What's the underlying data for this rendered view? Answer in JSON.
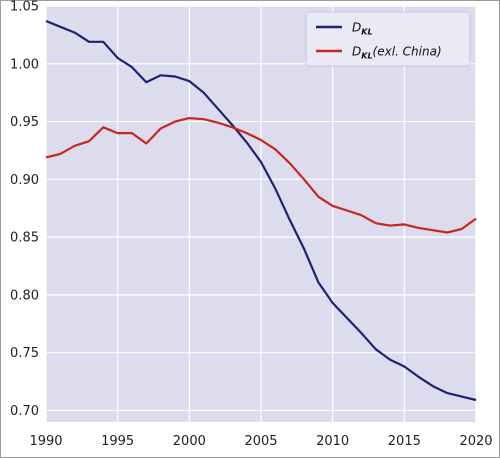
{
  "chart_data": {
    "type": "line",
    "x": [
      1990,
      1991,
      1992,
      1993,
      1994,
      1995,
      1996,
      1997,
      1998,
      1999,
      2000,
      2001,
      2002,
      2003,
      2004,
      2005,
      2006,
      2007,
      2008,
      2009,
      2010,
      2011,
      2012,
      2013,
      2014,
      2015,
      2016,
      2017,
      2018,
      2019,
      2020
    ],
    "series": [
      {
        "name": "D_KL",
        "legend_main": "D",
        "legend_sub": "KL",
        "legend_suffix": "",
        "color": "#1c2472",
        "values": [
          1.037,
          1.032,
          1.027,
          1.019,
          1.019,
          1.005,
          0.997,
          0.984,
          0.99,
          0.989,
          0.985,
          0.975,
          0.961,
          0.947,
          0.932,
          0.915,
          0.892,
          0.865,
          0.84,
          0.811,
          0.793,
          0.78,
          0.767,
          0.753,
          0.744,
          0.738,
          0.729,
          0.721,
          0.715,
          0.712,
          0.709
        ]
      },
      {
        "name": "D_KL(exl. China)",
        "legend_main": "D",
        "legend_sub": "KL",
        "legend_suffix": "(exl. China)",
        "color": "#c8271d",
        "values": [
          0.919,
          0.922,
          0.929,
          0.933,
          0.945,
          0.94,
          0.94,
          0.931,
          0.944,
          0.95,
          0.953,
          0.952,
          0.949,
          0.945,
          0.94,
          0.934,
          0.926,
          0.914,
          0.9,
          0.885,
          0.877,
          0.873,
          0.869,
          0.862,
          0.86,
          0.861,
          0.858,
          0.856,
          0.854,
          0.857,
          0.866
        ]
      }
    ],
    "xlim": [
      1990,
      2020
    ],
    "ylim": [
      0.69,
      1.05
    ],
    "x_ticks": [
      "1990",
      "1995",
      "2000",
      "2005",
      "2010",
      "2015",
      "2020"
    ],
    "y_ticks": [
      "0.70",
      "0.75",
      "0.80",
      "0.85",
      "0.90",
      "0.95",
      "1.00",
      "1.05"
    ],
    "grid": true,
    "legend_position": "top-right",
    "plot_background": "#dcdcee",
    "grid_color": "#ffffff"
  }
}
